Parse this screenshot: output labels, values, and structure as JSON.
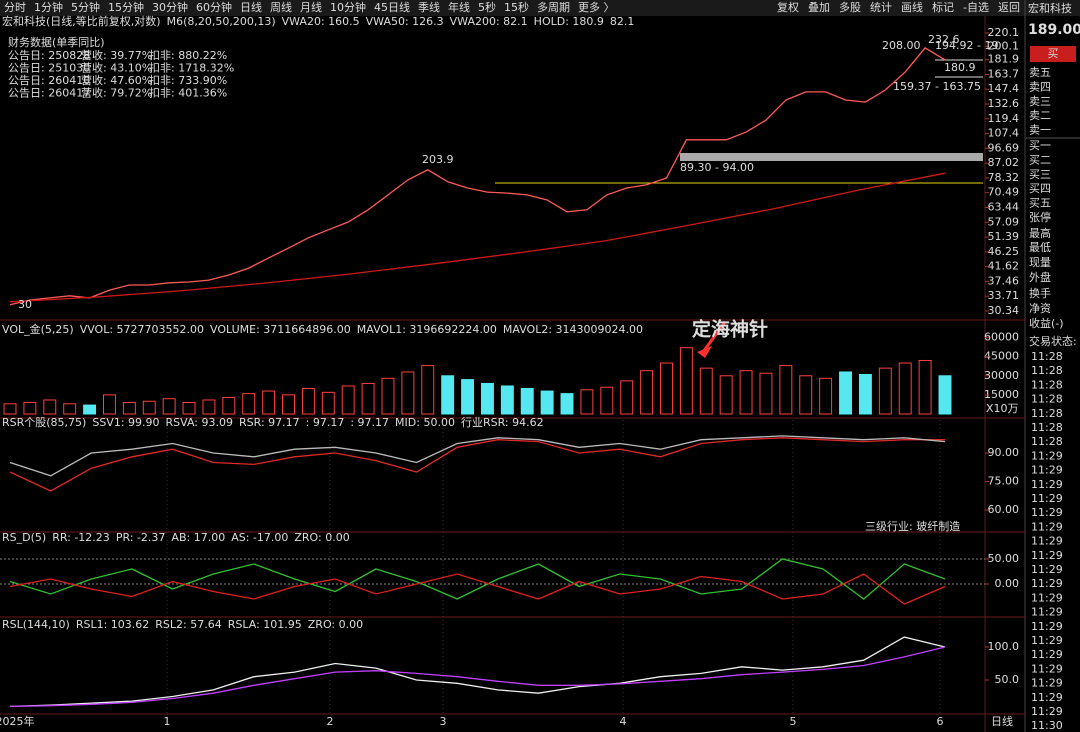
{
  "toolbar": {
    "tabs": [
      {
        "text": "分时"
      },
      {
        "text": "1分钟"
      },
      {
        "text": "5分钟"
      },
      {
        "text": "15分钟"
      },
      {
        "text": "30分钟"
      },
      {
        "text": "60分钟"
      },
      {
        "text": "日线",
        "color": "#ffd700"
      },
      {
        "text": "周线"
      },
      {
        "text": "月线"
      },
      {
        "text": "10分钟"
      },
      {
        "text": "45日线"
      },
      {
        "text": "季线"
      },
      {
        "text": "年线"
      },
      {
        "text": "5秒"
      },
      {
        "text": "15秒"
      },
      {
        "text": "多周期"
      },
      {
        "text": "更多 〉"
      }
    ],
    "tools": [
      "复权",
      "叠加",
      "多股",
      "统计",
      "画线",
      "标记",
      "-自选",
      "返回"
    ]
  },
  "quote": {
    "name": "宏和科技",
    "price": "189.00",
    "buy": "买",
    "book": [
      "卖五",
      "卖四",
      "卖三",
      "卖二",
      "卖一",
      "买一",
      "买二",
      "买三",
      "买四",
      "买五"
    ],
    "stats": [
      "张停",
      "最高",
      "最低",
      "现量",
      "外盘",
      "换手",
      "净资",
      "收益(-)",
      "交易状态:"
    ],
    "times": [
      "11:28",
      "11:28",
      "11:28",
      "11:28",
      "11:28",
      "11:28",
      "11:28",
      "11:29",
      "11:29",
      "11:29",
      "11:29",
      "11:29",
      "11:29",
      "11:29",
      "11:29",
      "11:29",
      "11:29",
      "11:29",
      "11:29",
      "11:29",
      "11:29",
      "11:29",
      "11:29",
      "11:29",
      "11:29",
      "11:29",
      "11:30"
    ]
  },
  "finance": {
    "title": "财务数据(单季同比)",
    "rows": [
      [
        "公告日: 250828",
        "营收: 39.77%",
        "扣非: 880.22%"
      ],
      [
        "公告日: 251030",
        "营收: 43.10%",
        "扣非: 1718.32%"
      ],
      [
        "公告日: 260410",
        "营收: 47.60%",
        "扣非: 733.90%"
      ],
      [
        "公告日: 260417",
        "营收: 79.72%",
        "扣非: 401.36%"
      ]
    ]
  },
  "x_labels": [
    "2025年",
    "1",
    "2",
    "3",
    "4",
    "5",
    "6"
  ],
  "period": "日线",
  "chart_data": [
    {
      "type": "line",
      "header": [
        {
          "text": "宏和科技(日线,等比前复权,对数)",
          "color": "#ddd"
        },
        {
          "text": "M6(8,20,50,200,13)",
          "color": "#ddd"
        },
        {
          "text": "VWA20: 160.5",
          "color": "#ddd"
        },
        {
          "text": "VWA50: 126.3",
          "color": "#e8c000"
        },
        {
          "text": "VWA200: 82.1",
          "color": "#c040ff"
        },
        {
          "text": "HOLD: 180.9",
          "color": "#3c3"
        },
        {
          "text": "82.1",
          "color": "#f33"
        }
      ],
      "log": true,
      "ylim": [
        28.86,
        228
      ],
      "yticks": [
        220.1,
        200.1,
        181.9,
        163.7,
        147.4,
        132.6,
        119.4,
        107.4,
        96.69,
        87.02,
        78.32,
        70.49,
        63.44,
        57.09,
        51.39,
        46.25,
        41.62,
        37.46,
        33.71,
        30.34
      ],
      "series": [
        {
          "color": "#ff5a5a",
          "values": [
            31.7,
            32.8,
            33.3,
            33.8,
            33.3,
            35.2,
            36.5,
            36.5,
            37.1,
            37.3,
            37.8,
            39.2,
            41.2,
            44.3,
            47.5,
            51.1,
            54.1,
            57.2,
            62.4,
            69.4,
            77.2,
            83.0,
            76.2,
            72.9,
            70.8,
            70.3,
            69.4,
            66.9,
            61.5,
            62.4,
            69.4,
            72.9,
            74.6,
            78.3,
            102.8,
            102.8,
            102.8,
            108.6,
            118.3,
            136.5,
            144.6,
            144.6,
            136.5,
            134.5,
            146.6,
            166.5,
            197.9,
            181.6
          ]
        },
        {
          "color": "#d01818",
          "values": [
            32.4,
            33.5,
            35,
            37,
            39.5,
            42.5,
            46,
            50,
            56,
            63,
            72,
            81
          ]
        }
      ],
      "annotations": [
        {
          "text": "208.00",
          "color": "#fff"
        },
        {
          "text": "232.6",
          "color": "#ff6aa0"
        },
        {
          "text": "194.92 - 19",
          "color": "#fff"
        },
        {
          "text": "180.9",
          "color": "#e8e000"
        },
        {
          "text": "159.37 - 163.75",
          "color": "#fff"
        },
        {
          "text": "89.30 - 94.00",
          "color": "#fff"
        },
        {
          "text": "203.9",
          "color": "#f33"
        },
        {
          "text": "30",
          "color": "#fff"
        }
      ]
    },
    {
      "type": "bar",
      "header": [
        {
          "text": "VOL_金(5,25)",
          "color": "#ddd"
        },
        {
          "text": "VVOL: 5727703552.00",
          "color": "#ddd"
        },
        {
          "text": "VOLUME: 3711664896.00",
          "color": "#e8c000"
        },
        {
          "text": "MAVOL1: 3196692224.00",
          "color": "#e8c000"
        },
        {
          "text": "MAVOL2: 3143009024.00",
          "color": "#c040ff"
        }
      ],
      "ylim": [
        0,
        62000
      ],
      "yticks": [
        15000,
        30000,
        45000,
        60000
      ],
      "up_color": "#ff4040",
      "down_color": "#55e8f0",
      "values": [
        8000,
        9000,
        11000,
        8000,
        7000,
        15000,
        9000,
        10000,
        12000,
        9000,
        11000,
        13000,
        16000,
        18000,
        15000,
        20000,
        17000,
        22000,
        24000,
        28000,
        33000,
        38000,
        30000,
        27000,
        24000,
        22000,
        20000,
        18000,
        16000,
        19000,
        21000,
        26000,
        34000,
        40000,
        52000,
        36000,
        30000,
        34000,
        32000,
        38000,
        30000,
        28000,
        33000,
        31000,
        36000,
        40000,
        42000,
        30000
      ],
      "annotations": [
        {
          "text": "定海神针",
          "color": "#ff3030"
        },
        {
          "text": "X10万",
          "color": "#ff3030"
        }
      ]
    },
    {
      "type": "line",
      "header": [
        {
          "text": "RSR个股(85,75)",
          "color": "#ddd"
        },
        {
          "text": "SSV1: 99.90",
          "color": "#3c3"
        },
        {
          "text": "RSVA: 93.09",
          "color": "#e8c000"
        },
        {
          "text": "RSR: 97.17",
          "color": "#3a7bd5"
        },
        {
          "text": ": 97.17",
          "color": "#ff6aa0"
        },
        {
          "text": ": 97.17",
          "color": "#f33"
        },
        {
          "text": "MID: 50.00",
          "color": "#ddd"
        },
        {
          "text": "行业RSR: 94.62",
          "color": "#ddd"
        }
      ],
      "ylim": [
        49.5,
        102.1
      ],
      "yticks": [
        {
          "value": 60,
          "label": "60.00"
        },
        {
          "value": 75,
          "label": "75.00"
        },
        {
          "value": 90,
          "label": "90.00"
        }
      ],
      "series": [
        {
          "color": "#e02828",
          "values": [
            80,
            70,
            82,
            88,
            92,
            85,
            84,
            88,
            90,
            86,
            80,
            93,
            97,
            96,
            90,
            92,
            88,
            95,
            97,
            98,
            97,
            96,
            97,
            97
          ]
        },
        {
          "color": "#bbb",
          "values": [
            85,
            78,
            90,
            92,
            95,
            90,
            88,
            92,
            93,
            90,
            85,
            95,
            98,
            97,
            93,
            95,
            92,
            97,
            98,
            99,
            98,
            97,
            98,
            96
          ]
        }
      ],
      "annotations": [
        {
          "text": "三级行业: 玻纤制造",
          "color": "#35d0e0"
        }
      ]
    },
    {
      "type": "line",
      "header": [
        {
          "text": "RS_D(5)",
          "color": "#ddd"
        },
        {
          "text": "RR: -12.23",
          "color": "#f33"
        },
        {
          "text": "PR: -2.37",
          "color": "#3c3"
        },
        {
          "text": "AB: 17.00",
          "color": "#ddd"
        },
        {
          "text": "AS: -17.00",
          "color": "#ddd"
        },
        {
          "text": "ZRO: 0.00",
          "color": "#ddd"
        }
      ],
      "ylim": [
        -56,
        78
      ],
      "yticks": [
        {
          "value": 0,
          "label": "0.00"
        },
        {
          "value": 50,
          "label": "50.00"
        }
      ],
      "series": [
        {
          "color": "#30c030",
          "values": [
            5,
            -20,
            10,
            30,
            -10,
            20,
            40,
            10,
            -15,
            30,
            5,
            -30,
            10,
            40,
            -5,
            20,
            10,
            -20,
            -10,
            50,
            30,
            -30,
            40,
            10
          ]
        },
        {
          "color": "#e02020",
          "values": [
            -5,
            10,
            -10,
            -25,
            5,
            -15,
            -30,
            -5,
            10,
            -20,
            0,
            20,
            -5,
            -30,
            5,
            -20,
            -10,
            15,
            5,
            -30,
            -20,
            20,
            -40,
            -5
          ]
        }
      ]
    },
    {
      "type": "line",
      "header": [
        {
          "text": "RSL(144,10)",
          "color": "#ddd"
        },
        {
          "text": "RSL1: 103.62",
          "color": "#ddd"
        },
        {
          "text": "RSL2: 57.64",
          "color": "#e8c000"
        },
        {
          "text": "RSLA: 101.95",
          "color": "#c040ff"
        },
        {
          "text": "ZRO: 0.00",
          "color": "#3c3"
        }
      ],
      "ylim": [
        1.5,
        122.7
      ],
      "yticks": [
        {
          "value": 50,
          "label": "50.0"
        },
        {
          "value": 100,
          "label": "100.0"
        }
      ],
      "series": [
        {
          "color": "#eee",
          "values": [
            10,
            12,
            15,
            18,
            25,
            35,
            55,
            62,
            75,
            68,
            50,
            45,
            35,
            30,
            40,
            45,
            55,
            60,
            70,
            65,
            70,
            80,
            115,
            100
          ]
        },
        {
          "color": "#c040ff",
          "values": [
            10,
            11,
            13,
            16,
            22,
            30,
            42,
            52,
            62,
            64,
            60,
            55,
            48,
            42,
            42,
            44,
            48,
            52,
            58,
            62,
            66,
            72,
            85,
            100
          ]
        }
      ]
    }
  ]
}
